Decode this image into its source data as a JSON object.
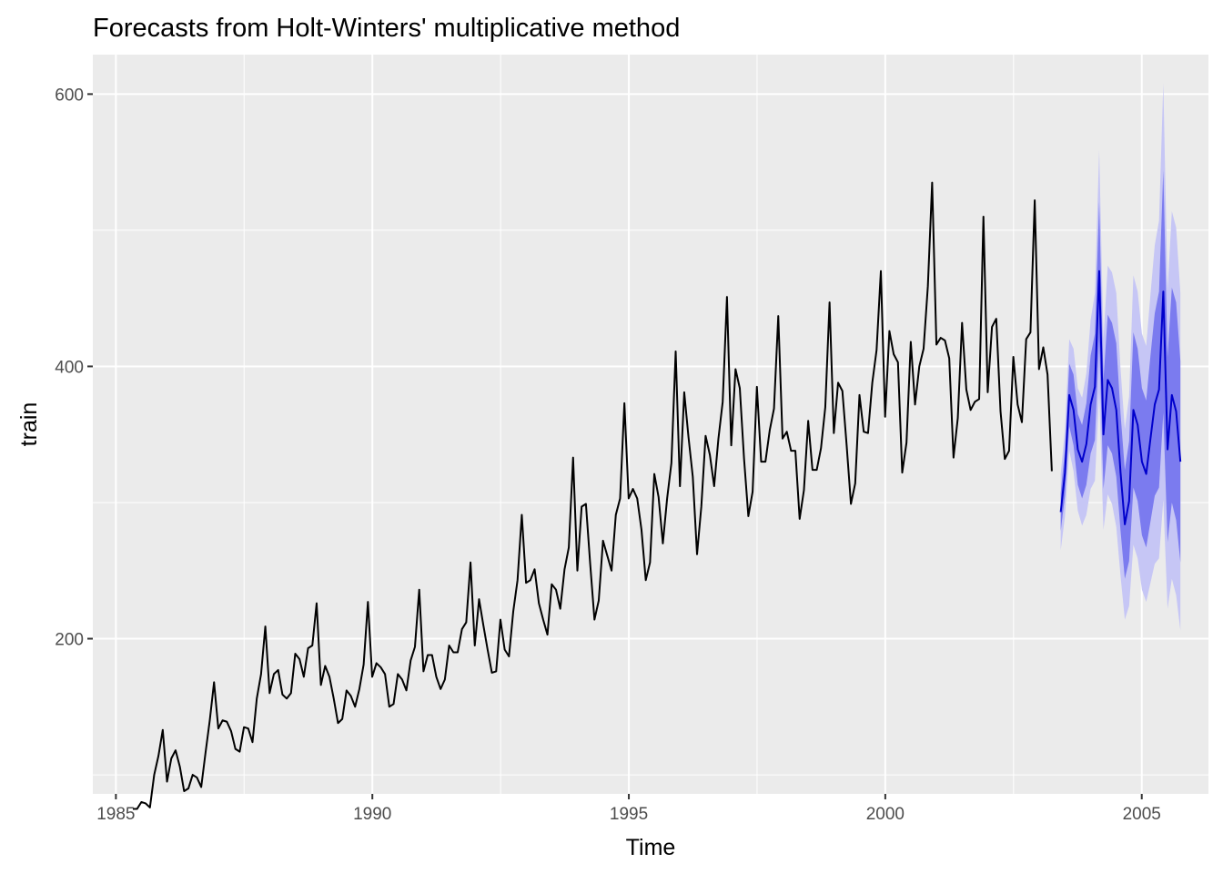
{
  "chart_data": {
    "type": "line",
    "title": "Forecasts from Holt-Winters' multiplicative method",
    "xlabel": "Time",
    "ylabel": "train",
    "xlim": [
      1984.55,
      2006.3
    ],
    "ylim": [
      86,
      629
    ],
    "x_ticks": [
      1985,
      1990,
      1995,
      2000,
      2005
    ],
    "x_tick_labels": [
      "1985",
      "1990",
      "1995",
      "2000",
      "2005"
    ],
    "y_ticks": [
      200,
      400,
      600
    ],
    "y_tick_labels": [
      "200",
      "400",
      "600"
    ],
    "grid": true,
    "background": "#ebebeb",
    "colors": {
      "grid_major": "#ffffff",
      "observed_line": "#000000",
      "forecast_line": "#0000cc",
      "interval_80": "#7b7bef",
      "interval_95": "#c6c6f5"
    },
    "observed": {
      "start": 1985.33,
      "frequency": 12,
      "values": [
        75,
        75,
        80,
        79,
        76,
        100,
        114,
        133,
        95,
        112,
        118,
        106,
        88,
        90,
        100,
        98,
        91,
        116,
        140,
        168,
        134,
        140,
        139,
        132,
        119,
        117,
        135,
        134,
        124,
        156,
        174,
        209,
        160,
        174,
        177,
        159,
        156,
        160,
        189,
        185,
        172,
        193,
        195,
        226,
        166,
        180,
        172,
        156,
        138,
        141,
        162,
        158,
        150,
        163,
        181,
        227,
        172,
        182,
        179,
        174,
        150,
        152,
        174,
        170,
        162,
        184,
        194,
        236,
        176,
        188,
        188,
        172,
        163,
        170,
        195,
        190,
        190,
        207,
        212,
        256,
        195,
        229,
        210,
        192,
        175,
        176,
        214,
        192,
        187,
        220,
        243,
        291,
        241,
        243,
        251,
        226,
        214,
        203,
        240,
        236,
        222,
        251,
        267,
        333,
        250,
        297,
        299,
        255,
        214,
        228,
        272,
        261,
        250,
        291,
        303,
        373,
        303,
        310,
        303,
        280,
        243,
        256,
        321,
        304,
        270,
        303,
        329,
        411,
        312,
        381,
        348,
        319,
        262,
        297,
        349,
        335,
        312,
        347,
        374,
        451,
        342,
        398,
        384,
        332,
        290,
        308,
        385,
        330,
        330,
        353,
        369,
        437,
        347,
        352,
        338,
        338,
        288,
        309,
        360,
        324,
        324,
        340,
        370,
        447,
        351,
        388,
        382,
        342,
        299,
        314,
        379,
        352,
        351,
        388,
        412,
        470,
        363,
        426,
        409,
        403,
        322,
        344,
        418,
        372,
        400,
        413,
        459,
        535,
        416,
        421,
        419,
        406,
        333,
        362,
        432,
        383,
        368,
        374,
        376,
        510,
        381,
        429,
        435,
        367,
        332,
        338,
        407,
        372,
        359,
        420,
        425,
        522,
        398,
        414,
        394,
        323
      ]
    },
    "forecast": {
      "start": 2003.42,
      "frequency": 12,
      "mean": [
        293,
        322,
        379,
        368,
        339,
        330,
        343,
        372,
        385,
        470,
        350,
        390,
        384,
        368,
        322,
        284,
        301,
        368,
        357,
        330,
        321,
        347,
        372,
        383,
        455,
        339,
        379,
        367,
        330
      ],
      "lo80": [
        279,
        305,
        356,
        342,
        313,
        303,
        313,
        336,
        346,
        419,
        310,
        342,
        336,
        319,
        279,
        244,
        257,
        311,
        301,
        276,
        267,
        286,
        305,
        311,
        366,
        271,
        300,
        287,
        256
      ],
      "hi80": [
        307,
        339,
        402,
        394,
        365,
        357,
        373,
        408,
        424,
        521,
        390,
        438,
        432,
        417,
        365,
        324,
        345,
        425,
        413,
        384,
        375,
        408,
        439,
        455,
        544,
        407,
        458,
        447,
        404
      ],
      "lo95": [
        265,
        290,
        338,
        323,
        294,
        283,
        291,
        310,
        316,
        381,
        280,
        306,
        299,
        282,
        246,
        214,
        224,
        269,
        259,
        236,
        227,
        241,
        255,
        259,
        302,
        222,
        244,
        232,
        206
      ],
      "hi95": [
        321,
        354,
        420,
        413,
        384,
        377,
        395,
        434,
        454,
        559,
        420,
        474,
        469,
        454,
        398,
        354,
        378,
        467,
        455,
        424,
        415,
        453,
        489,
        507,
        608,
        456,
        514,
        502,
        454
      ]
    }
  }
}
